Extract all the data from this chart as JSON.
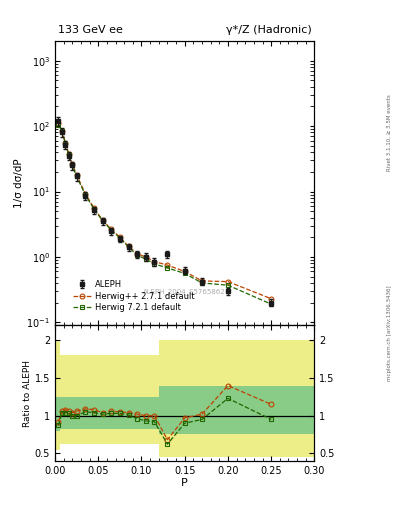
{
  "title_left": "133 GeV ee",
  "title_right": "γ*/Z (Hadronic)",
  "ylabel_main": "1/σ dσ/dP",
  "ylabel_ratio": "Ratio to ALEPH",
  "xlabel": "P",
  "right_label_top": "Rivet 3.1.10, ≥ 3.5M events",
  "right_label_bot": "mcplots.cern.ch [arXiv:1306.3436]",
  "watermark": "ALEPH_2004_S5765862",
  "xlim": [
    0.0,
    0.3
  ],
  "ylim_main": [
    0.09,
    2000
  ],
  "ylim_ratio": [
    0.4,
    2.2
  ],
  "aleph_x": [
    0.004,
    0.008,
    0.012,
    0.016,
    0.02,
    0.025,
    0.035,
    0.045,
    0.055,
    0.065,
    0.075,
    0.085,
    0.095,
    0.105,
    0.115,
    0.13,
    0.15,
    0.17,
    0.2,
    0.25
  ],
  "aleph_y": [
    120,
    80,
    52,
    35,
    25,
    17,
    8.5,
    5.2,
    3.5,
    2.5,
    1.9,
    1.4,
    1.1,
    1.0,
    0.85,
    1.1,
    0.62,
    0.42,
    0.3,
    0.2
  ],
  "aleph_yerr": [
    18,
    12,
    8,
    5,
    3.5,
    2.5,
    1.2,
    0.7,
    0.4,
    0.3,
    0.22,
    0.18,
    0.14,
    0.13,
    0.11,
    0.14,
    0.08,
    0.05,
    0.04,
    0.025
  ],
  "herwig_pp_x": [
    0.004,
    0.008,
    0.012,
    0.016,
    0.02,
    0.025,
    0.035,
    0.045,
    0.055,
    0.065,
    0.075,
    0.085,
    0.095,
    0.105,
    0.115,
    0.13,
    0.15,
    0.17,
    0.2,
    0.25
  ],
  "herwig_pp_y": [
    110,
    85,
    56,
    37,
    26,
    18,
    9.3,
    5.6,
    3.65,
    2.65,
    2.0,
    1.45,
    1.12,
    1.0,
    0.85,
    0.75,
    0.6,
    0.43,
    0.42,
    0.23
  ],
  "herwig72_x": [
    0.004,
    0.008,
    0.012,
    0.016,
    0.02,
    0.025,
    0.035,
    0.045,
    0.055,
    0.065,
    0.075,
    0.085,
    0.095,
    0.105,
    0.115,
    0.13,
    0.15,
    0.17,
    0.2,
    0.25
  ],
  "herwig72_y": [
    105,
    83,
    54,
    36,
    25,
    17,
    8.9,
    5.4,
    3.58,
    2.58,
    1.95,
    1.42,
    1.06,
    0.93,
    0.78,
    0.68,
    0.56,
    0.4,
    0.37,
    0.19
  ],
  "ratio_herwig_pp": [
    0.92,
    1.06,
    1.08,
    1.06,
    1.04,
    1.06,
    1.09,
    1.08,
    1.04,
    1.06,
    1.05,
    1.04,
    1.02,
    1.0,
    1.0,
    0.68,
    0.97,
    1.02,
    1.4,
    1.15
  ],
  "ratio_herwig72": [
    0.87,
    1.04,
    1.04,
    1.03,
    1.0,
    1.0,
    1.05,
    1.04,
    1.02,
    1.03,
    1.03,
    1.01,
    0.96,
    0.93,
    0.92,
    0.62,
    0.9,
    0.95,
    1.23,
    0.95
  ],
  "band_x_edges": [
    0.0,
    0.006,
    0.01,
    0.014,
    0.018,
    0.023,
    0.03,
    0.04,
    0.05,
    0.06,
    0.07,
    0.08,
    0.09,
    0.1,
    0.11,
    0.12,
    0.14,
    0.16,
    0.185,
    0.225,
    0.3
  ],
  "band_yellow_lo": [
    0.55,
    0.62,
    0.62,
    0.62,
    0.62,
    0.62,
    0.62,
    0.62,
    0.62,
    0.62,
    0.62,
    0.62,
    0.62,
    0.62,
    0.62,
    0.45,
    0.45,
    0.45,
    0.45,
    0.45,
    0.45
  ],
  "band_yellow_hi": [
    2.0,
    1.8,
    1.8,
    1.8,
    1.8,
    1.8,
    1.8,
    1.8,
    1.8,
    1.8,
    1.8,
    1.8,
    1.8,
    1.8,
    1.8,
    2.0,
    2.0,
    2.0,
    2.0,
    2.0,
    2.0
  ],
  "band_green_lo": [
    0.8,
    0.82,
    0.82,
    0.82,
    0.82,
    0.82,
    0.82,
    0.82,
    0.82,
    0.82,
    0.82,
    0.82,
    0.82,
    0.82,
    0.82,
    0.75,
    0.75,
    0.75,
    0.75,
    0.75,
    0.75
  ],
  "band_green_hi": [
    1.25,
    1.25,
    1.25,
    1.25,
    1.25,
    1.25,
    1.25,
    1.25,
    1.25,
    1.25,
    1.25,
    1.25,
    1.25,
    1.25,
    1.25,
    1.4,
    1.4,
    1.4,
    1.4,
    1.4,
    1.4
  ],
  "color_aleph": "#1a1a1a",
  "color_herwig_pp": "#bb4400",
  "color_herwig72": "#226600",
  "color_band_yellow": "#eeee88",
  "color_band_green": "#88cc88",
  "background_color": "#ffffff"
}
